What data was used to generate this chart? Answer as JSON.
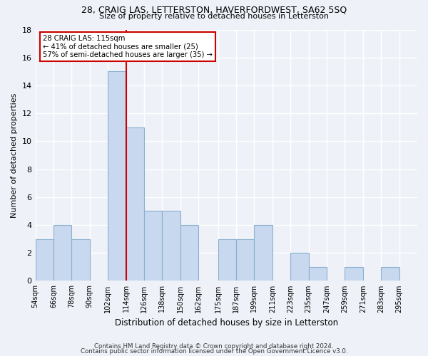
{
  "title1": "28, CRAIG LAS, LETTERSTON, HAVERFORDWEST, SA62 5SQ",
  "title2": "Size of property relative to detached houses in Letterston",
  "xlabel": "Distribution of detached houses by size in Letterston",
  "ylabel": "Number of detached properties",
  "bar_color": "#c8d8ee",
  "bar_edge_color": "#8ab0d0",
  "background_color": "#eef2f8",
  "grid_color": "#ffffff",
  "bin_left_edges": [
    54,
    66,
    78,
    90,
    102,
    114,
    126,
    138,
    150,
    162,
    175,
    187,
    199,
    211,
    223,
    235,
    247,
    259,
    271,
    283,
    295
  ],
  "bin_width": 12,
  "counts": [
    3,
    4,
    3,
    0,
    15,
    11,
    5,
    5,
    4,
    0,
    3,
    3,
    4,
    0,
    2,
    1,
    0,
    1,
    0,
    1,
    0
  ],
  "bin_labels": [
    "54sqm",
    "66sqm",
    "78sqm",
    "90sqm",
    "102sqm",
    "114sqm",
    "126sqm",
    "138sqm",
    "150sqm",
    "162sqm",
    "175sqm",
    "187sqm",
    "199sqm",
    "211sqm",
    "223sqm",
    "235sqm",
    "247sqm",
    "259sqm",
    "271sqm",
    "283sqm",
    "295sqm"
  ],
  "property_line_x": 114,
  "property_line_label": "28 CRAIG LAS: 115sqm",
  "annotation_line1": "← 41% of detached houses are smaller (25)",
  "annotation_line2": "57% of semi-detached houses are larger (35) →",
  "annotation_box_facecolor": "#ffffff",
  "annotation_box_edgecolor": "#cc0000",
  "vline_color": "#cc0000",
  "ylim": [
    0,
    18
  ],
  "yticks": [
    0,
    2,
    4,
    6,
    8,
    10,
    12,
    14,
    16,
    18
  ],
  "footer1": "Contains HM Land Registry data © Crown copyright and database right 2024.",
  "footer2": "Contains public sector information licensed under the Open Government Licence v3.0."
}
